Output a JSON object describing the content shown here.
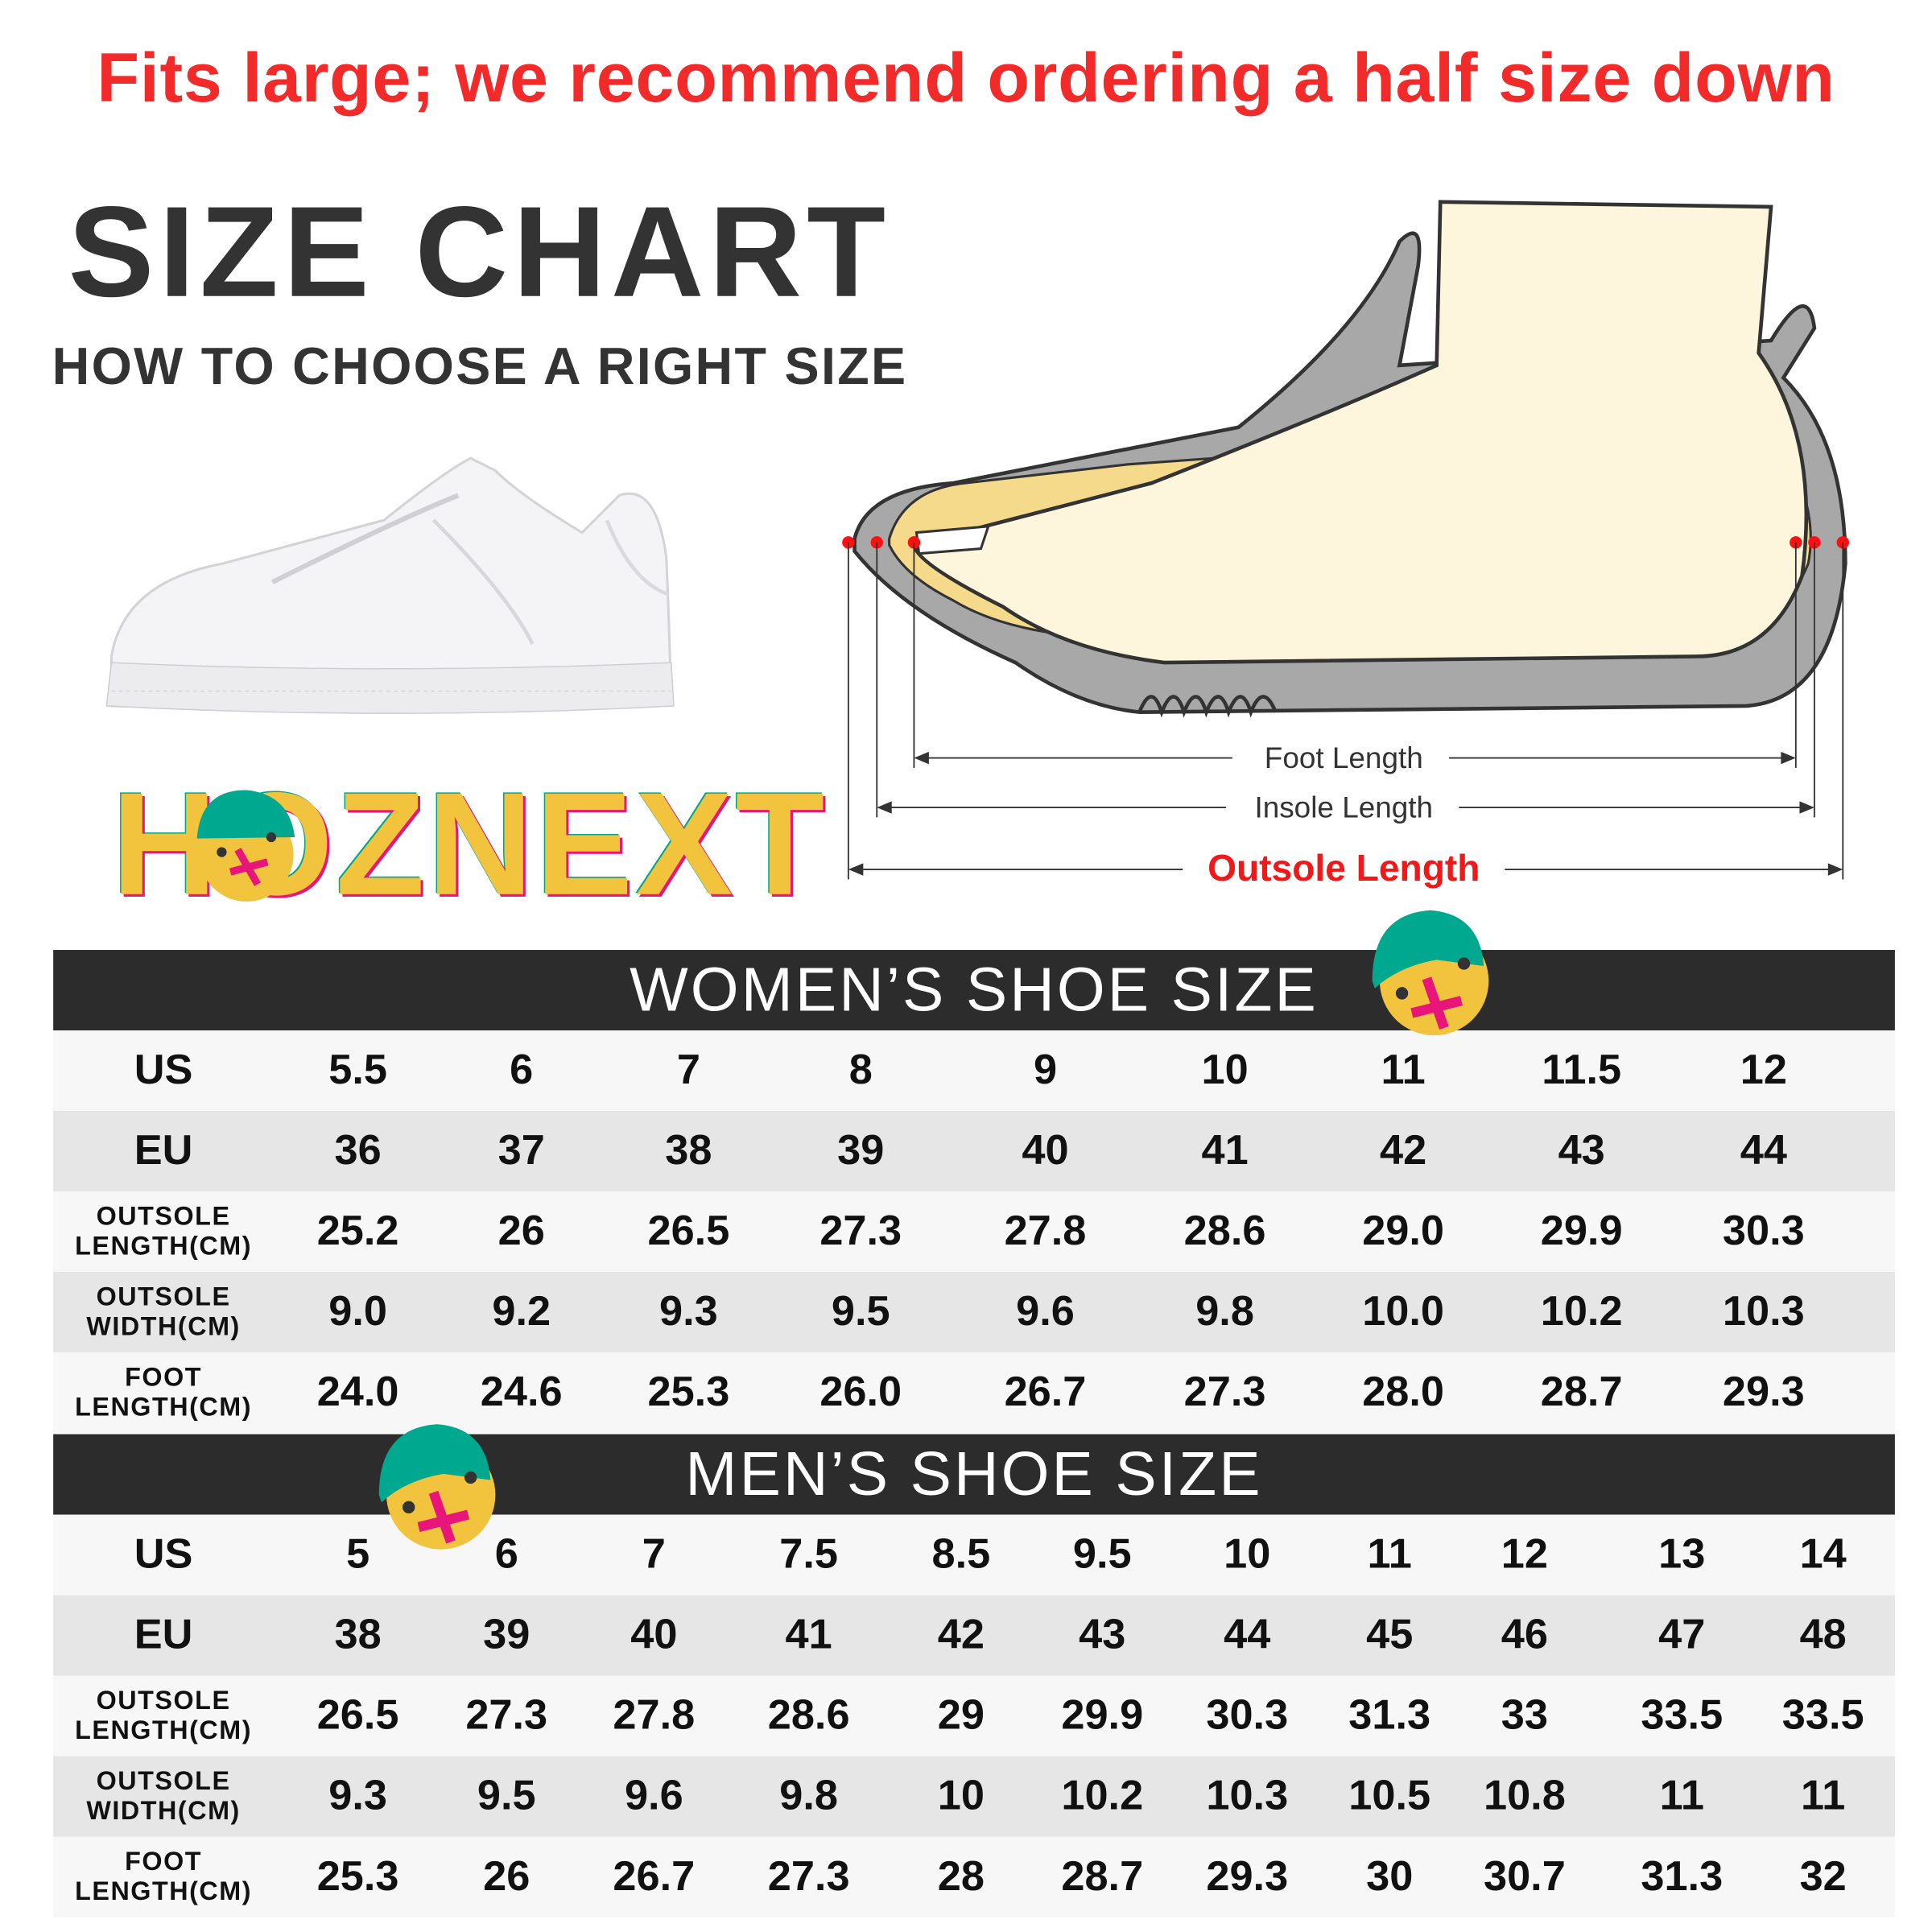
{
  "notice": "Fits large; we recommend ordering a half size down",
  "title": "SIZE CHART",
  "subtitle": "HOW TO CHOOSE A RIGHT SIZE",
  "brand": "HOZNEXT",
  "diagram": {
    "foot_length": "Foot Length",
    "insole_length": "Insole Length",
    "outsole_length": "Outsole Length"
  },
  "colors": {
    "notice": "#f22a2a",
    "header_bg": "#2c2c2c",
    "row_light": "#f7f7f7",
    "row_dark": "#e6e6e6",
    "brand_yellow": "#f2c43d",
    "brand_teal": "#00a88f",
    "brand_pink": "#e8157a"
  },
  "women": {
    "heading": "WOMEN’S SHOE SIZE",
    "rows": [
      {
        "label": "US",
        "values": [
          "5.5",
          "6",
          "7",
          "8",
          "9",
          "10",
          "11",
          "11.5",
          "12"
        ]
      },
      {
        "label": "EU",
        "values": [
          "36",
          "37",
          "38",
          "39",
          "40",
          "41",
          "42",
          "43",
          "44"
        ]
      },
      {
        "label": "OUTSOLE LENGTH(CM)",
        "values": [
          "25.2",
          "26",
          "26.5",
          "27.3",
          "27.8",
          "28.6",
          "29.0",
          "29.9",
          "30.3"
        ]
      },
      {
        "label": "OUTSOLE WIDTH(CM)",
        "values": [
          "9.0",
          "9.2",
          "9.3",
          "9.5",
          "9.6",
          "9.8",
          "10.0",
          "10.2",
          "10.3"
        ]
      },
      {
        "label": "FOOT LENGTH(CM)",
        "values": [
          "24.0",
          "24.6",
          "25.3",
          "26.0",
          "26.7",
          "27.3",
          "28.0",
          "28.7",
          "29.3"
        ]
      }
    ]
  },
  "men": {
    "heading": "MEN’S SHOE SIZE",
    "rows": [
      {
        "label": "US",
        "values": [
          "5",
          "6",
          "7",
          "7.5",
          "8.5",
          "9.5",
          "10",
          "11",
          "12",
          "13",
          "14"
        ]
      },
      {
        "label": "EU",
        "values": [
          "38",
          "39",
          "40",
          "41",
          "42",
          "43",
          "44",
          "45",
          "46",
          "47",
          "48"
        ]
      },
      {
        "label": "OUTSOLE LENGTH(CM)",
        "values": [
          "26.5",
          "27.3",
          "27.8",
          "28.6",
          "29",
          "29.9",
          "30.3",
          "31.3",
          "33",
          "33.5",
          "33.5"
        ]
      },
      {
        "label": "OUTSOLE WIDTH(CM)",
        "values": [
          "9.3",
          "9.5",
          "9.6",
          "9.8",
          "10",
          "10.2",
          "10.3",
          "10.5",
          "10.8",
          "11",
          "11"
        ]
      },
      {
        "label": "FOOT LENGTH(CM)",
        "values": [
          "25.3",
          "26",
          "26.7",
          "27.3",
          "28",
          "28.7",
          "29.3",
          "30",
          "30.7",
          "31.3",
          "32"
        ]
      }
    ]
  }
}
